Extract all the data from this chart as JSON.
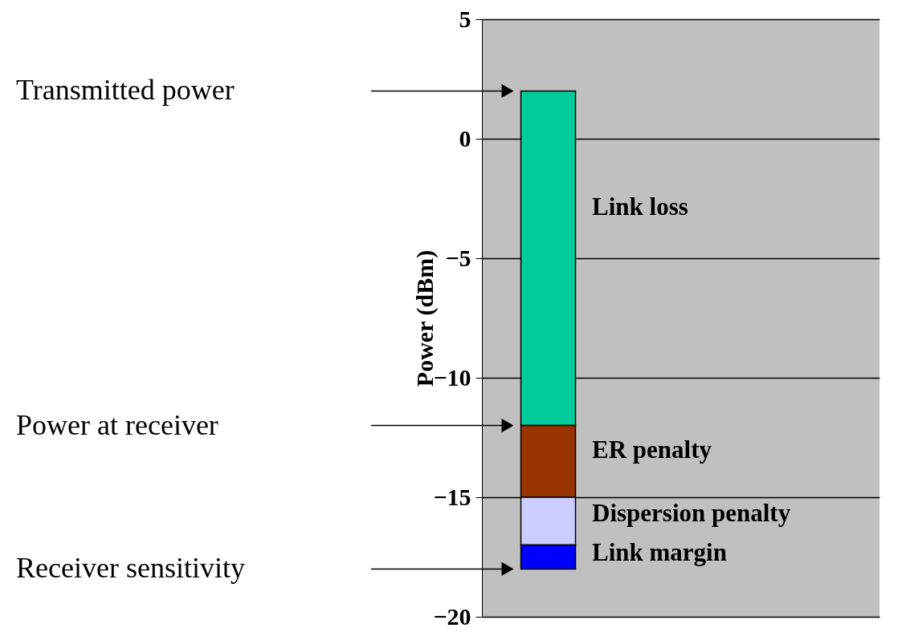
{
  "chart_data": {
    "type": "bar",
    "ylabel": "Power (dBm)",
    "categories": [
      null
    ],
    "series": [
      {
        "name": "Link loss",
        "color": "#00cc99",
        "values": [
          -14
        ],
        "base": [
          2
        ]
      },
      {
        "name": "ER penalty",
        "color": "#993300",
        "values": [
          -3
        ],
        "base": [
          -12
        ]
      },
      {
        "name": "Dispersion penalty",
        "color": "#ccccff",
        "values": [
          -2
        ],
        "base": [
          -15
        ]
      },
      {
        "name": "Link margin",
        "color": "#0000ff",
        "values": [
          -1
        ],
        "base": [
          -17
        ]
      }
    ],
    "ylim": [
      -20,
      5
    ],
    "yticks": [
      5,
      0,
      -5,
      -10,
      -15,
      -20
    ],
    "grid": "y",
    "annotations": [
      "Transmitted power",
      "Power at receiver",
      "Receiver sensitivity"
    ]
  }
}
